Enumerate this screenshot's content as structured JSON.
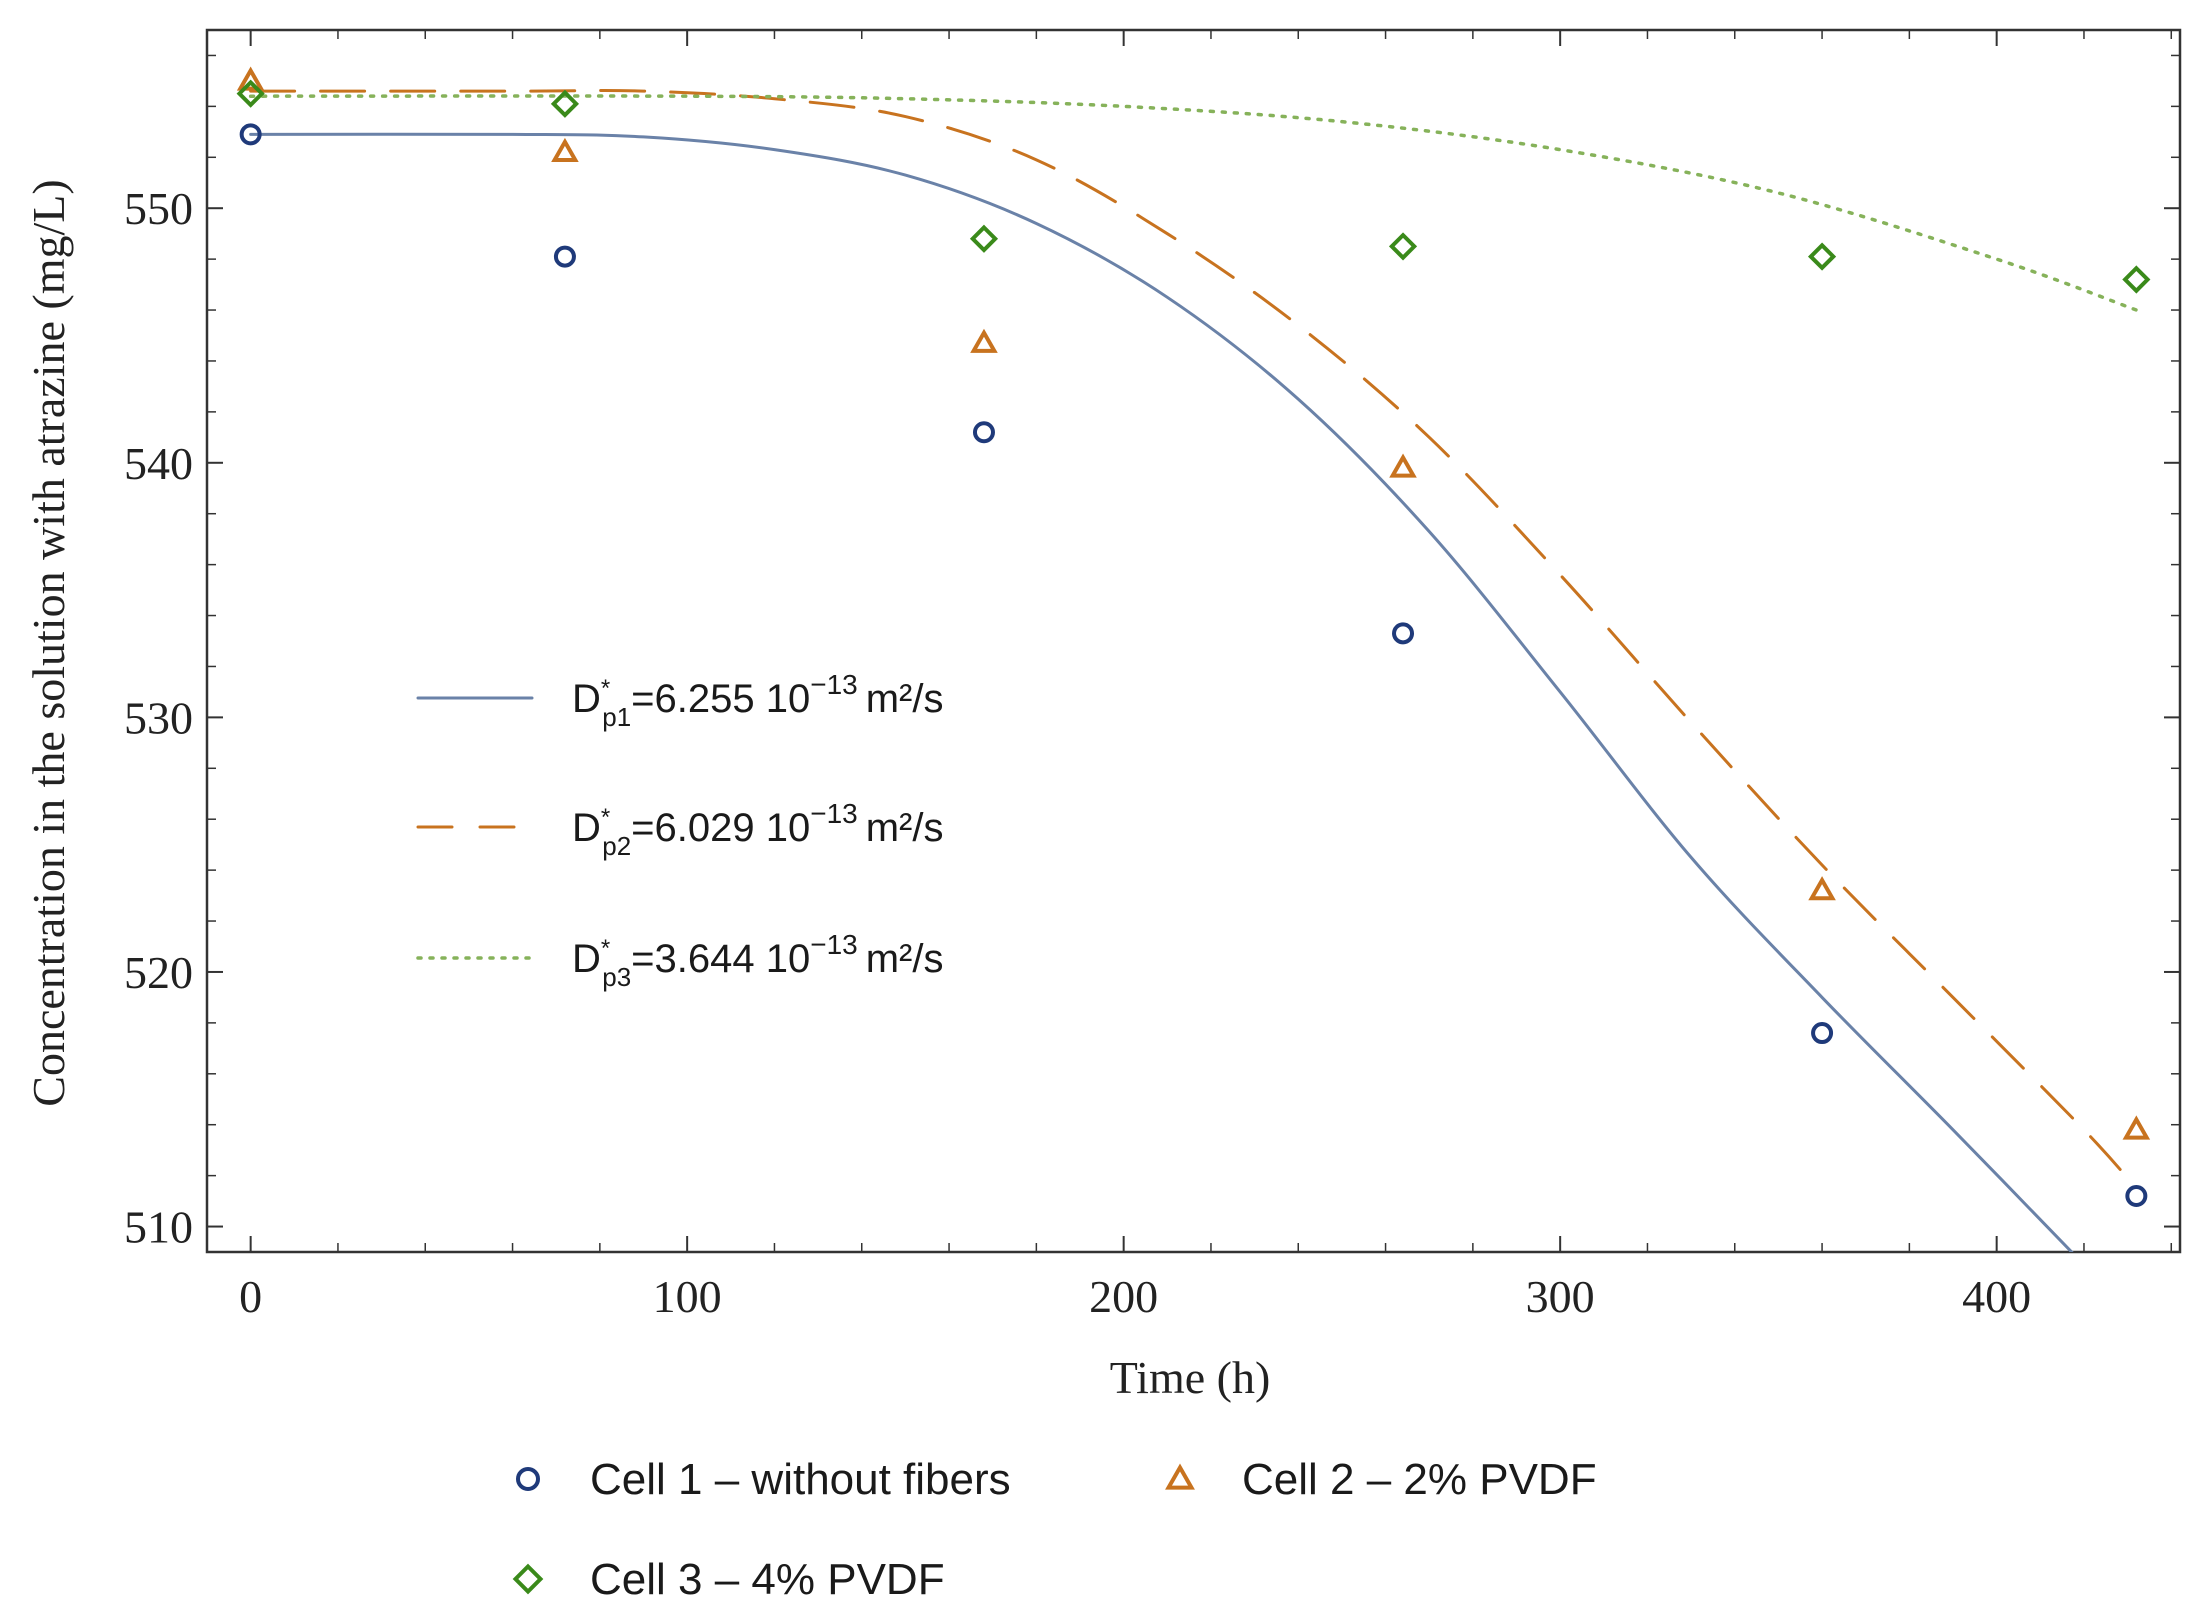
{
  "chart_data": {
    "type": "scatter",
    "title": "",
    "xlabel": "Time (h)",
    "ylabel": "Concentration in the solution with atrazine (mg/L)",
    "xlim": [
      -10,
      442
    ],
    "ylim": [
      509,
      557
    ],
    "xticks": [
      0,
      100,
      200,
      300,
      400
    ],
    "yticks": [
      510,
      520,
      530,
      540,
      550
    ],
    "grid": false,
    "series": [
      {
        "name": "Cell 1 – without fibers",
        "marker": "circle",
        "color": "#1f3a7a",
        "x": [
          0,
          72,
          168,
          264,
          360,
          432
        ],
        "values": [
          552.9,
          548.1,
          541.2,
          533.3,
          517.6,
          511.2
        ]
      },
      {
        "name": "Cell 2 – 2% PVDF",
        "marker": "triangle",
        "color": "#c8731f",
        "x": [
          0,
          72,
          168,
          264,
          360,
          432
        ],
        "values": [
          555.0,
          552.2,
          544.7,
          539.8,
          523.2,
          513.8
        ]
      },
      {
        "name": "Cell 3 – 4% PVDF",
        "marker": "diamond",
        "color": "#3a8a1a",
        "x": [
          0,
          72,
          168,
          264,
          360,
          432
        ],
        "values": [
          554.5,
          554.1,
          548.8,
          548.5,
          548.1,
          547.2
        ]
      }
    ],
    "fits": [
      {
        "label_main": "D",
        "label_sup": "*",
        "label_sub": "p1",
        "label_value": "=6.255 10",
        "label_exp": "−13",
        "label_unit": "m²/s",
        "style": "solid",
        "color": "#6a82a8",
        "x": [
          0,
          60,
          90,
          120,
          150,
          180,
          210,
          240,
          270,
          300,
          330,
          360,
          390,
          420
        ],
        "values": [
          552.9,
          552.9,
          552.8,
          552.3,
          551.3,
          549.4,
          546.5,
          542.5,
          537.3,
          531.0,
          524.5,
          519.0,
          513.8,
          508.5
        ]
      },
      {
        "label_main": "D",
        "label_sup": "*",
        "label_sub": "p2",
        "label_value": "=6.029 10",
        "label_exp": "−13",
        "label_unit": "m²/s",
        "style": "dashed",
        "color": "#c8731f",
        "x": [
          0,
          60,
          90,
          120,
          150,
          180,
          210,
          240,
          270,
          300,
          330,
          360,
          390,
          420,
          432
        ],
        "values": [
          554.6,
          554.6,
          554.6,
          554.3,
          553.6,
          551.9,
          549.0,
          545.4,
          541.0,
          535.6,
          529.8,
          524.2,
          519.0,
          513.8,
          511.5
        ]
      },
      {
        "label_main": "D",
        "label_sup": "*",
        "label_sub": "p3",
        "label_value": "=3.644 10",
        "label_exp": "−13",
        "label_unit": "m²/s",
        "style": "dotted",
        "color": "#86b25a",
        "x": [
          0,
          100,
          150,
          200,
          250,
          300,
          350,
          400,
          432
        ],
        "values": [
          554.4,
          554.4,
          554.3,
          554.0,
          553.4,
          552.3,
          550.6,
          548.0,
          546.0
        ]
      }
    ]
  }
}
